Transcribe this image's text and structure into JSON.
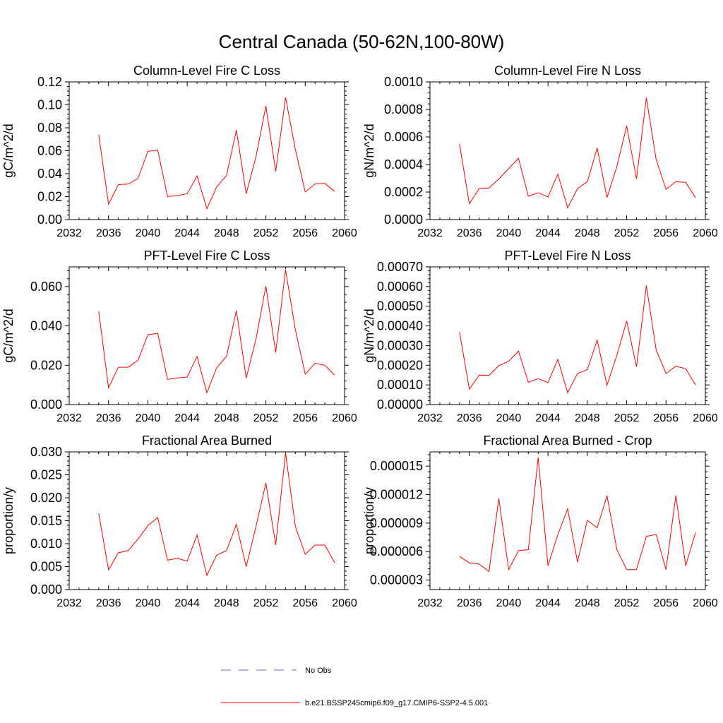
{
  "figure": {
    "title": "Central Canada (50-62N,100-80W)",
    "legend": {
      "obs_label": "No Obs",
      "obs_color": "#6670b3",
      "model_label": "b.e21.BSSP245cmip6.f09_g17.CMIP6-SSP2-4.5.001",
      "model_color": "#ff0000"
    }
  },
  "chart_data": [
    {
      "type": "line",
      "title": "Column-Level Fire C Loss",
      "ylabel": "gC/m^2/d",
      "xlim": [
        2032,
        2060
      ],
      "ylim": [
        0,
        0.12
      ],
      "xticks": [
        2032,
        2036,
        2040,
        2044,
        2048,
        2052,
        2056,
        2060
      ],
      "xtick_labels": [
        "2032",
        "2036",
        "2040",
        "2044",
        "2048",
        "2052",
        "2056",
        "2060"
      ],
      "yticks": [
        0,
        0.02,
        0.04,
        0.06,
        0.08,
        0.1,
        0.12
      ],
      "ytick_labels": [
        "0.00",
        "0.02",
        "0.04",
        "0.06",
        "0.08",
        "0.10",
        "0.12"
      ],
      "x": [
        2035,
        2036,
        2037,
        2038,
        2039,
        2040,
        2041,
        2042,
        2043,
        2044,
        2045,
        2046,
        2047,
        2048,
        2049,
        2050,
        2051,
        2052,
        2053,
        2054,
        2055,
        2056,
        2057,
        2058,
        2059
      ],
      "series": [
        {
          "name": "b.e21.BSSP245cmip6.f09_g17.CMIP6-SSP2-4.5.001",
          "values": [
            0.074,
            0.0135,
            0.0305,
            0.031,
            0.036,
            0.0595,
            0.0605,
            0.02,
            0.021,
            0.0225,
            0.038,
            0.0095,
            0.0285,
            0.0385,
            0.078,
            0.0225,
            0.055,
            0.099,
            0.042,
            0.1065,
            0.061,
            0.024,
            0.031,
            0.0315,
            0.0245
          ]
        }
      ]
    },
    {
      "type": "line",
      "title": "Column-Level Fire N Loss",
      "ylabel": "gN/m^2/d",
      "xlim": [
        2032,
        2060
      ],
      "ylim": [
        0,
        0.001
      ],
      "xticks": [
        2032,
        2036,
        2040,
        2044,
        2048,
        2052,
        2056,
        2060
      ],
      "xtick_labels": [
        "2032",
        "2036",
        "2040",
        "2044",
        "2048",
        "2052",
        "2056",
        "2060"
      ],
      "yticks": [
        0,
        0.0002,
        0.0004,
        0.0006,
        0.0008,
        0.001
      ],
      "ytick_labels": [
        "0.0000",
        "0.0002",
        "0.0004",
        "0.0006",
        "0.0008",
        "0.0010"
      ],
      "x": [
        2035,
        2036,
        2037,
        2038,
        2039,
        2040,
        2041,
        2042,
        2043,
        2044,
        2045,
        2046,
        2047,
        2048,
        2049,
        2050,
        2051,
        2052,
        2053,
        2054,
        2055,
        2056,
        2057,
        2058,
        2059
      ],
      "series": [
        {
          "name": "b.e21.BSSP245cmip6.f09_g17.CMIP6-SSP2-4.5.001",
          "values": [
            0.00055,
            0.000115,
            0.000225,
            0.00023,
            0.000295,
            0.00037,
            0.000445,
            0.00017,
            0.000195,
            0.000165,
            0.00033,
            8.5e-05,
            0.000225,
            0.000275,
            0.00052,
            0.00016,
            0.000385,
            0.00068,
            0.000295,
            0.000885,
            0.000435,
            0.00022,
            0.000275,
            0.00027,
            0.00016
          ]
        }
      ]
    },
    {
      "type": "line",
      "title": "PFT-Level Fire C Loss",
      "ylabel": "gC/m^2/d",
      "xlim": [
        2032,
        2060
      ],
      "ylim": [
        0,
        0.07
      ],
      "xticks": [
        2032,
        2036,
        2040,
        2044,
        2048,
        2052,
        2056,
        2060
      ],
      "xtick_labels": [
        "2032",
        "2036",
        "2040",
        "2044",
        "2048",
        "2052",
        "2056",
        "2060"
      ],
      "yticks": [
        0,
        0.02,
        0.04,
        0.06
      ],
      "ytick_labels": [
        "0.000",
        "0.020",
        "0.040",
        "0.060"
      ],
      "x": [
        2035,
        2036,
        2037,
        2038,
        2039,
        2040,
        2041,
        2042,
        2043,
        2044,
        2045,
        2046,
        2047,
        2048,
        2049,
        2050,
        2051,
        2052,
        2053,
        2054,
        2055,
        2056,
        2057,
        2058,
        2059
      ],
      "series": [
        {
          "name": "b.e21.BSSP245cmip6.f09_g17.CMIP6-SSP2-4.5.001",
          "values": [
            0.0475,
            0.0085,
            0.019,
            0.019,
            0.0225,
            0.0355,
            0.0362,
            0.0128,
            0.0135,
            0.014,
            0.0245,
            0.006,
            0.0188,
            0.0245,
            0.0478,
            0.0135,
            0.0335,
            0.0602,
            0.0265,
            0.0685,
            0.038,
            0.0155,
            0.021,
            0.02,
            0.015
          ]
        }
      ]
    },
    {
      "type": "line",
      "title": "PFT-Level Fire N Loss",
      "ylabel": "gN/m^2/d",
      "xlim": [
        2032,
        2060
      ],
      "ylim": [
        0,
        0.0007
      ],
      "xticks": [
        2032,
        2036,
        2040,
        2044,
        2048,
        2052,
        2056,
        2060
      ],
      "xtick_labels": [
        "2032",
        "2036",
        "2040",
        "2044",
        "2048",
        "2052",
        "2056",
        "2060"
      ],
      "yticks": [
        0,
        0.0001,
        0.0002,
        0.0003,
        0.0004,
        0.0005,
        0.0006,
        0.0007
      ],
      "ytick_labels": [
        "0.00000",
        "0.00010",
        "0.00020",
        "0.00030",
        "0.00040",
        "0.00050",
        "0.00060",
        "0.00070"
      ],
      "x": [
        2035,
        2036,
        2037,
        2038,
        2039,
        2040,
        2041,
        2042,
        2043,
        2044,
        2045,
        2046,
        2047,
        2048,
        2049,
        2050,
        2051,
        2052,
        2053,
        2054,
        2055,
        2056,
        2057,
        2058,
        2059
      ],
      "series": [
        {
          "name": "b.e21.BSSP245cmip6.f09_g17.CMIP6-SSP2-4.5.001",
          "values": [
            0.00037,
            7.8e-05,
            0.00015,
            0.000148,
            0.000198,
            0.00022,
            0.000272,
            0.000113,
            0.000132,
            0.000112,
            0.00023,
            6e-05,
            0.000158,
            0.000178,
            0.000328,
            9.8e-05,
            0.00025,
            0.000425,
            0.000192,
            0.000605,
            0.000278,
            0.000158,
            0.000195,
            0.000182,
            0.0001
          ]
        }
      ]
    },
    {
      "type": "line",
      "title": "Fractional Area Burned",
      "ylabel": "proportion/y",
      "xlim": [
        2032,
        2060
      ],
      "ylim": [
        0,
        0.03
      ],
      "xticks": [
        2032,
        2036,
        2040,
        2044,
        2048,
        2052,
        2056,
        2060
      ],
      "xtick_labels": [
        "2032",
        "2036",
        "2040",
        "2044",
        "2048",
        "2052",
        "2056",
        "2060"
      ],
      "yticks": [
        0,
        0.005,
        0.01,
        0.015,
        0.02,
        0.025,
        0.03
      ],
      "ytick_labels": [
        "0.000",
        "0.005",
        "0.010",
        "0.015",
        "0.020",
        "0.025",
        "0.030"
      ],
      "x": [
        2035,
        2036,
        2037,
        2038,
        2039,
        2040,
        2041,
        2042,
        2043,
        2044,
        2045,
        2046,
        2047,
        2048,
        2049,
        2050,
        2051,
        2052,
        2053,
        2054,
        2055,
        2056,
        2057,
        2058,
        2059
      ],
      "series": [
        {
          "name": "b.e21.BSSP245cmip6.f09_g17.CMIP6-SSP2-4.5.001",
          "values": [
            0.0166,
            0.0043,
            0.008,
            0.0085,
            0.011,
            0.0139,
            0.0157,
            0.0064,
            0.0068,
            0.0062,
            0.0119,
            0.0031,
            0.0075,
            0.0085,
            0.0142,
            0.005,
            0.0138,
            0.0232,
            0.0097,
            0.0298,
            0.0137,
            0.0077,
            0.0097,
            0.0097,
            0.0058
          ]
        }
      ]
    },
    {
      "type": "line",
      "title": "Fractional Area Burned - Crop",
      "ylabel": "proportion/y",
      "xlim": [
        2032,
        2060
      ],
      "ylim": [
        2e-06,
        1.65e-05
      ],
      "xticks": [
        2032,
        2036,
        2040,
        2044,
        2048,
        2052,
        2056,
        2060
      ],
      "xtick_labels": [
        "2032",
        "2036",
        "2040",
        "2044",
        "2048",
        "2052",
        "2056",
        "2060"
      ],
      "yticks": [
        3e-06,
        6e-06,
        9e-06,
        1.2e-05,
        1.5e-05
      ],
      "ytick_labels": [
        "0.000003",
        "0.000006",
        "0.000009",
        "0.000012",
        "0.000015"
      ],
      "x": [
        2035,
        2036,
        2037,
        2038,
        2039,
        2040,
        2041,
        2042,
        2043,
        2044,
        2045,
        2046,
        2047,
        2048,
        2049,
        2050,
        2051,
        2052,
        2053,
        2054,
        2055,
        2056,
        2057,
        2058,
        2059
      ],
      "series": [
        {
          "name": "b.e21.BSSP245cmip6.f09_g17.CMIP6-SSP2-4.5.001",
          "values": [
            5.5e-06,
            4.8e-06,
            4.7e-06,
            3.9e-06,
            1.16e-05,
            4.1e-06,
            6.1e-06,
            6.2e-06,
            1.59e-05,
            4.5e-06,
            7.8e-06,
            1.05e-05,
            4.9e-06,
            9.3e-06,
            8.5e-06,
            1.19e-05,
            6.2e-06,
            4.1e-06,
            4.1e-06,
            7.6e-06,
            7.8e-06,
            4.1e-06,
            1.19e-05,
            4.5e-06,
            8e-06
          ]
        }
      ]
    }
  ]
}
